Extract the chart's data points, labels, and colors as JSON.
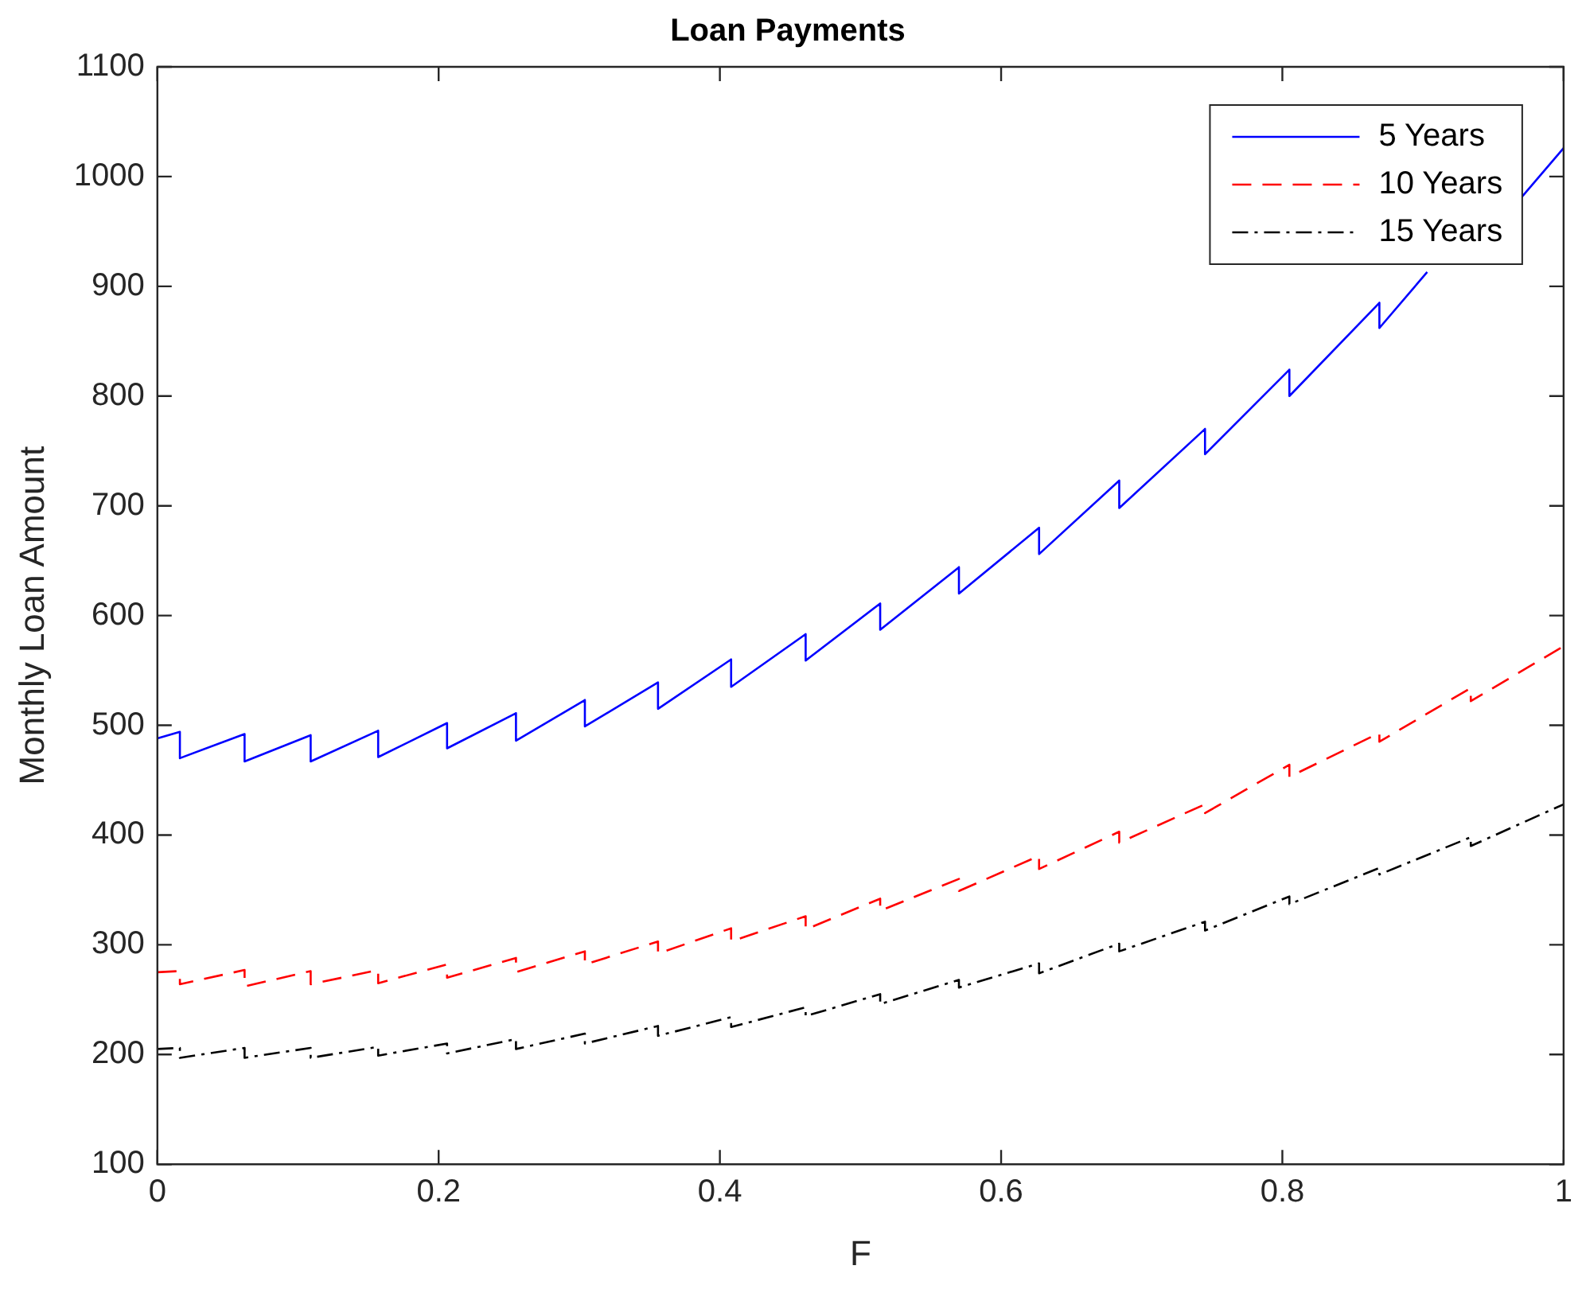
{
  "chart_data": {
    "type": "line",
    "title": "Loan Payments",
    "xlabel": "F",
    "ylabel": "Monthly Loan Amount",
    "xlim": [
      0,
      1
    ],
    "xticks": [
      0,
      0.2,
      0.4,
      0.6,
      0.8,
      1
    ],
    "ylim": [
      100,
      1100
    ],
    "yticks": [
      100,
      200,
      300,
      400,
      500,
      600,
      700,
      800,
      900,
      1000,
      1100
    ],
    "grid": false,
    "legend": "top right",
    "marker": "none",
    "series": [
      {
        "name": "5 Years",
        "color": "#0000ff",
        "line_style": "solid",
        "x": [
          0,
          0.016,
          0.016,
          0.062,
          0.062,
          0.109,
          0.109,
          0.157,
          0.157,
          0.206,
          0.206,
          0.255,
          0.255,
          0.304,
          0.304,
          0.356,
          0.356,
          0.408,
          0.408,
          0.461,
          0.461,
          0.514,
          0.514,
          0.57,
          0.57,
          0.627,
          0.627,
          0.684,
          0.684,
          0.745,
          0.745,
          0.805,
          0.805,
          0.869,
          0.869,
          0.903,
          0.935,
          0.97,
          1
        ],
        "values": [
          488,
          494,
          470,
          492,
          467,
          491,
          467,
          495,
          471,
          502,
          479,
          511,
          486,
          523,
          499,
          539,
          515,
          560,
          535,
          583,
          559,
          611,
          587,
          644,
          620,
          680,
          656,
          723,
          698,
          770,
          747,
          824,
          800,
          885,
          862,
          913,
          null,
          981,
          1026
        ]
      },
      {
        "name": "10 Years",
        "color": "#ff0000",
        "line_style": "dashed",
        "x": [
          0,
          0.016,
          0.016,
          0.062,
          0.062,
          0.109,
          0.109,
          0.157,
          0.157,
          0.206,
          0.206,
          0.255,
          0.255,
          0.304,
          0.304,
          0.356,
          0.356,
          0.408,
          0.408,
          0.461,
          0.461,
          0.514,
          0.514,
          0.57,
          0.57,
          0.627,
          0.627,
          0.684,
          0.684,
          0.745,
          0.745,
          0.805,
          0.805,
          0.869,
          0.869,
          0.934,
          0.934,
          1
        ],
        "values": [
          275,
          276,
          264,
          277,
          262,
          276,
          264,
          277,
          265,
          282,
          270,
          288,
          275,
          294,
          282,
          303,
          292,
          315,
          303,
          326,
          314,
          342,
          331,
          360,
          349,
          381,
          369,
          403,
          393,
          428,
          420,
          464,
          453,
          493,
          485,
          534,
          522,
          572
        ]
      },
      {
        "name": "15 Years",
        "color": "#000000",
        "line_style": "dashdot",
        "x": [
          0,
          0.016,
          0.016,
          0.062,
          0.062,
          0.109,
          0.109,
          0.157,
          0.157,
          0.206,
          0.206,
          0.255,
          0.255,
          0.304,
          0.304,
          0.356,
          0.356,
          0.408,
          0.408,
          0.461,
          0.461,
          0.514,
          0.514,
          0.57,
          0.57,
          0.627,
          0.627,
          0.684,
          0.684,
          0.745,
          0.745,
          0.805,
          0.805,
          0.869,
          0.869,
          0.934,
          0.934,
          1
        ],
        "values": [
          205,
          206,
          197,
          206,
          197,
          206,
          197,
          207,
          199,
          210,
          201,
          214,
          205,
          219,
          210,
          226,
          217,
          234,
          225,
          243,
          235,
          255,
          246,
          268,
          261,
          283,
          274,
          301,
          294,
          321,
          313,
          344,
          337,
          370,
          364,
          398,
          390,
          428
        ]
      }
    ]
  }
}
